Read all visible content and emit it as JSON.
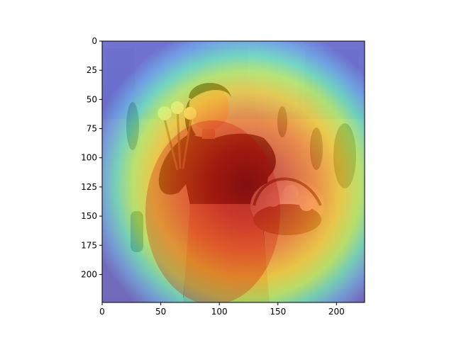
{
  "image": {
    "description_free": true,
    "overlay": "attention-heatmap",
    "colormap": [
      "#00007f",
      "#0000ff",
      "#00bfff",
      "#00ff7f",
      "#bfff00",
      "#ffff00",
      "#ff7f00",
      "#ff0000",
      "#7f0000"
    ],
    "overlay_opacity": 0.5
  },
  "axes": {
    "x_ticks": [
      "0",
      "50",
      "100",
      "150",
      "200"
    ],
    "y_ticks": [
      "0",
      "25",
      "50",
      "75",
      "100",
      "125",
      "150",
      "175",
      "200"
    ],
    "xlim": [
      0,
      224
    ],
    "ylim": [
      224,
      0
    ]
  }
}
